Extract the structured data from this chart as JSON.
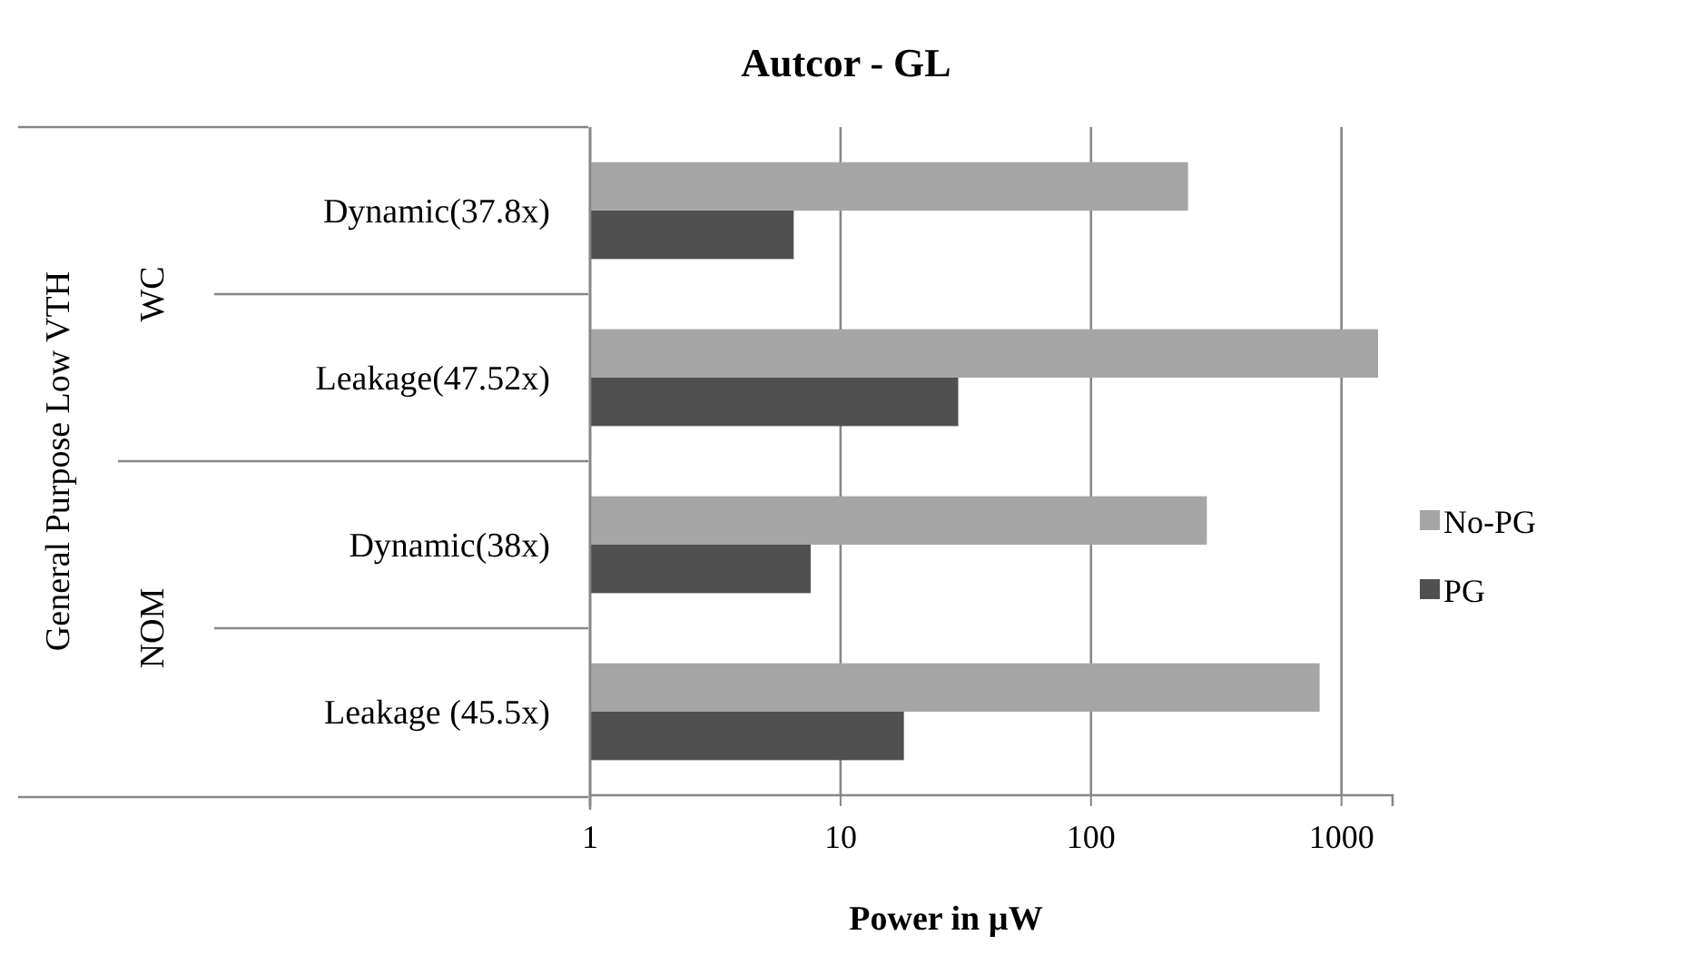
{
  "chart_data": {
    "type": "bar",
    "orientation": "horizontal",
    "title": "Autcor - GL",
    "xlabel": "Power in µW",
    "annotations": [
      "General Purpose Low VTH",
      "WC",
      "NOM"
    ],
    "categories": [
      "Dynamic(37.8x)",
      "Leakage(47.52x)",
      "Dynamic(38x)",
      "Leakage (45.5x)"
    ],
    "series": [
      {
        "name": "No-PG",
        "color": "#a6a6a6",
        "values": [
          244,
          1400,
          290,
          818
        ]
      },
      {
        "name": "PG",
        "color": "#505050",
        "values": [
          6.5,
          29.5,
          7.6,
          17.9
        ]
      }
    ],
    "log": "x",
    "xlim": [
      1,
      1600
    ],
    "xticks": [
      1,
      10,
      100,
      1000
    ],
    "grid": "x",
    "legend": "right"
  }
}
